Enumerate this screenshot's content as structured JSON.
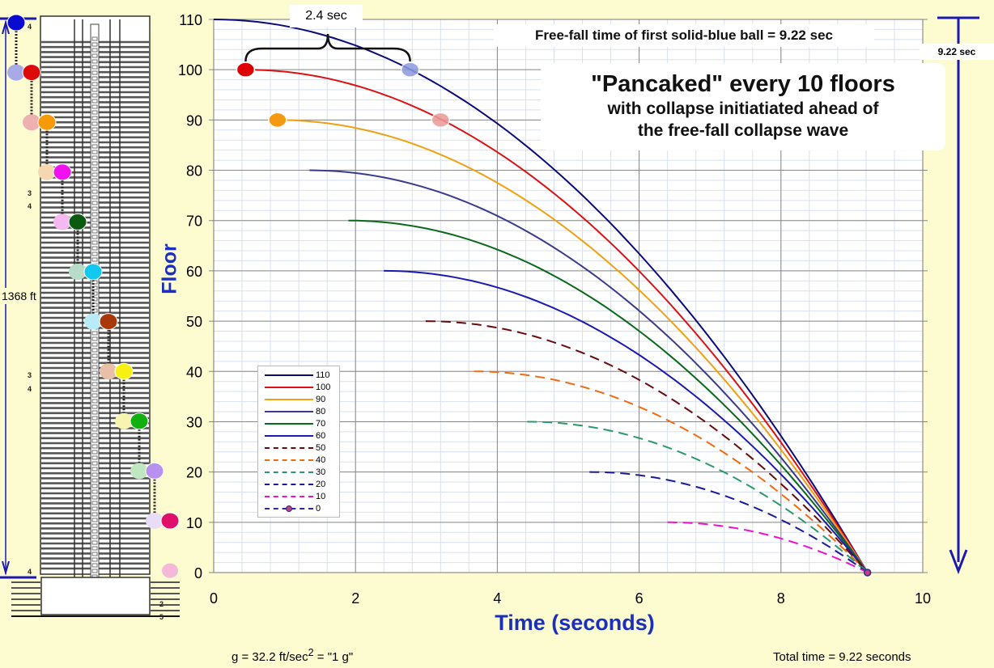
{
  "annotations": {
    "top_note": "Free-fall time of first solid-blue ball  =  9.22 sec",
    "title_line1": "\"Pancaked\" every 10 floors",
    "title_line2": "with collapse initiatiated ahead of",
    "title_line3": "the free-fall collapse wave",
    "brace_label": "2.4  sec",
    "right_arrow_label": "9.22 sec",
    "height_label": "1368  ft",
    "g_note_prefix": "g  =  32.2  ft/sec",
    "g_note_sup": "2",
    "g_note_suffix": "  =  \"1  g\"",
    "total_note": "Total time = 9.22 seconds",
    "building_markers": [
      "4",
      "3",
      "4",
      "3",
      "4",
      "4",
      "2",
      "5"
    ]
  },
  "chart_data": {
    "type": "line",
    "title": "\"Pancaked\" every 10 floors",
    "xlabel": "Time  (seconds)",
    "ylabel": "Floor",
    "xlim": [
      0,
      10
    ],
    "ylim": [
      0,
      110
    ],
    "xticks": [
      "0",
      "2",
      "4",
      "6",
      "8",
      "10"
    ],
    "yticks": [
      "0",
      "10",
      "20",
      "30",
      "40",
      "50",
      "60",
      "70",
      "80",
      "90",
      "100",
      "110"
    ],
    "grid": true,
    "legend_position": "bottom-left",
    "end_time": 9.22,
    "series": [
      {
        "name": "110",
        "start_time": 0.0,
        "start_floor": 110,
        "color": "#0a0a7a",
        "dashed": false
      },
      {
        "name": "100",
        "start_time": 0.45,
        "start_floor": 100,
        "color": "#dd1111",
        "dashed": false
      },
      {
        "name": "90",
        "start_time": 0.9,
        "start_floor": 90,
        "color": "#f0a010",
        "dashed": false
      },
      {
        "name": "80",
        "start_time": 1.35,
        "start_floor": 80,
        "color": "#3a3a8a",
        "dashed": false
      },
      {
        "name": "70",
        "start_time": 1.9,
        "start_floor": 70,
        "color": "#0a6a1a",
        "dashed": false
      },
      {
        "name": "60",
        "start_time": 2.4,
        "start_floor": 60,
        "color": "#1a1ab0",
        "dashed": false
      },
      {
        "name": "50",
        "start_time": 2.99,
        "start_floor": 50,
        "color": "#6a0a0a",
        "dashed": true
      },
      {
        "name": "40",
        "start_time": 3.67,
        "start_floor": 40,
        "color": "#f06a10",
        "dashed": true
      },
      {
        "name": "30",
        "start_time": 4.42,
        "start_floor": 30,
        "color": "#2a9a6a",
        "dashed": true
      },
      {
        "name": "20",
        "start_time": 5.3,
        "start_floor": 20,
        "color": "#1a1a9a",
        "dashed": true
      },
      {
        "name": "10",
        "start_time": 6.4,
        "start_floor": 10,
        "color": "#ee10cc",
        "dashed": true
      },
      {
        "name": "0",
        "start_time": 9.22,
        "start_floor": 0,
        "color": "#2a2a9a",
        "dashed": true
      }
    ],
    "markers": [
      {
        "label": "red ball start",
        "time": 0.45,
        "floor": 100,
        "color": "#dd0000",
        "faded": false
      },
      {
        "label": "orange ball start",
        "time": 0.9,
        "floor": 90,
        "color": "#f59a10",
        "faded": false
      },
      {
        "label": "blue ball at 100",
        "time": 2.77,
        "floor": 100,
        "color": "#8a9ae0",
        "faded": true
      },
      {
        "label": "red ball at 90",
        "time": 3.2,
        "floor": 90,
        "color": "#ec9a9a",
        "faded": true
      }
    ],
    "brace_span_sec": 2.4,
    "free_fall_time_sec": 9.22
  },
  "building_balls": [
    {
      "solid": "#0a0ad0",
      "faded": "#a8aae8"
    },
    {
      "solid": "#dd0a0a",
      "faded": "#eeb0b0"
    },
    {
      "solid": "#f79a0a",
      "faded": "#f6d8b0"
    },
    {
      "solid": "#f010f0",
      "faded": "#f6b8f0"
    },
    {
      "solid": "#0a5a10",
      "faded": "#b8dcc8"
    },
    {
      "solid": "#10c8f0",
      "faded": "#b8eaf8"
    },
    {
      "solid": "#a8380a",
      "faded": "#e8c0a8"
    },
    {
      "solid": "#f8f010",
      "faded": "#f8f4b0"
    },
    {
      "solid": "#10b010",
      "faded": "#c0e8c0"
    },
    {
      "solid": "#b890f0",
      "faded": "#e8dcf8"
    },
    {
      "solid": "#e0106a",
      "faded": "#f4b8d8"
    }
  ]
}
